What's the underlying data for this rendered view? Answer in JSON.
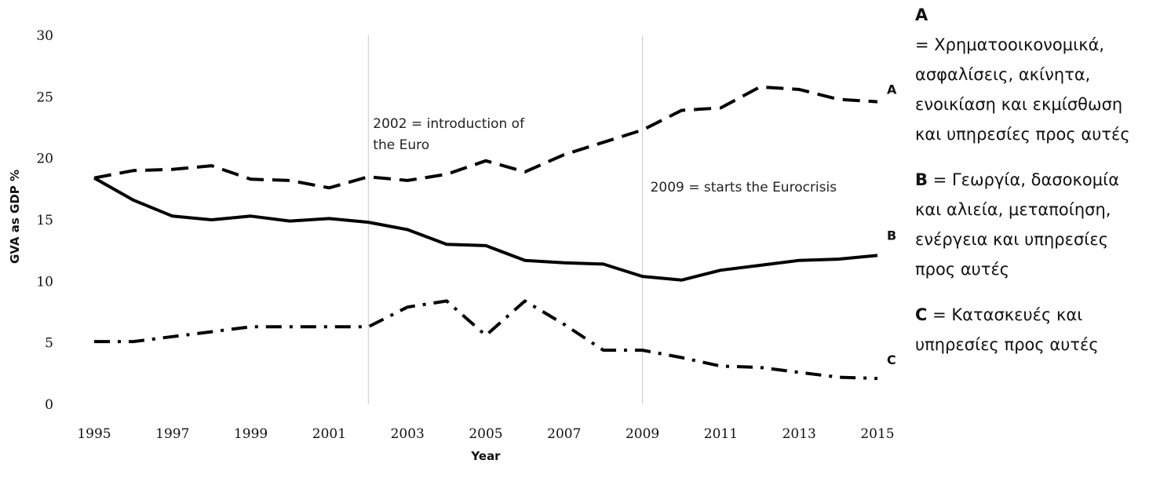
{
  "chart_data": {
    "type": "line",
    "xlabel": "Year",
    "ylabel": "GVA as GDP %",
    "xlim": [
      1995,
      2015
    ],
    "ylim": [
      0,
      30
    ],
    "x_ticks": [
      "1995",
      "1997",
      "1999",
      "2001",
      "2003",
      "2005",
      "2007",
      "2009",
      "2011",
      "2013",
      "2015"
    ],
    "y_ticks": [
      "0",
      "5",
      "10",
      "15",
      "20",
      "25",
      "30"
    ],
    "x": [
      1995,
      1996,
      1997,
      1998,
      1999,
      2000,
      2001,
      2002,
      2003,
      2004,
      2005,
      2006,
      2007,
      2008,
      2009,
      2010,
      2011,
      2012,
      2013,
      2014,
      2015
    ],
    "series": [
      {
        "name": "A",
        "style": "dashed",
        "values": [
          18.4,
          19.0,
          19.1,
          19.4,
          18.3,
          18.2,
          17.6,
          18.5,
          18.2,
          18.7,
          19.8,
          18.9,
          20.3,
          21.3,
          22.3,
          23.9,
          24.1,
          25.8,
          25.6,
          24.8,
          24.6
        ]
      },
      {
        "name": "B",
        "style": "solid",
        "values": [
          18.4,
          16.6,
          15.3,
          15.0,
          15.3,
          14.9,
          15.1,
          14.8,
          14.2,
          13.0,
          12.9,
          11.7,
          11.5,
          11.4,
          10.4,
          10.1,
          10.9,
          11.3,
          11.7,
          11.8,
          12.1
        ]
      },
      {
        "name": "C",
        "style": "dashdot",
        "values": [
          5.1,
          5.1,
          5.5,
          5.9,
          6.3,
          6.3,
          6.3,
          6.3,
          7.9,
          8.4,
          5.6,
          8.4,
          6.5,
          4.4,
          4.4,
          3.8,
          3.1,
          3.0,
          2.6,
          2.2,
          2.1
        ]
      }
    ],
    "vlines": [
      {
        "x": 2002,
        "label_lines": [
          "2002 = introduction of",
          "the Euro"
        ]
      },
      {
        "x": 2009,
        "label_lines": [
          "2009 = starts the Eurocrisis"
        ]
      }
    ],
    "grid": false,
    "legend": "right"
  },
  "legend": {
    "a_key": "A",
    "a_text": "= Χρηματοοικονομικά, ασφαλίσεις, ακίνητα, ενοικίαση και εκμίσθωση και υπηρεσίες προς αυτές",
    "b_key": "B",
    "b_text": "= Γεωργία, δασοκομία και αλιεία, μεταποίηση, ενέργεια και υπηρεσίες προς αυτές",
    "c_key": "C",
    "c_text": "= Κατασκευές και υπηρεσίες προς αυτές"
  }
}
